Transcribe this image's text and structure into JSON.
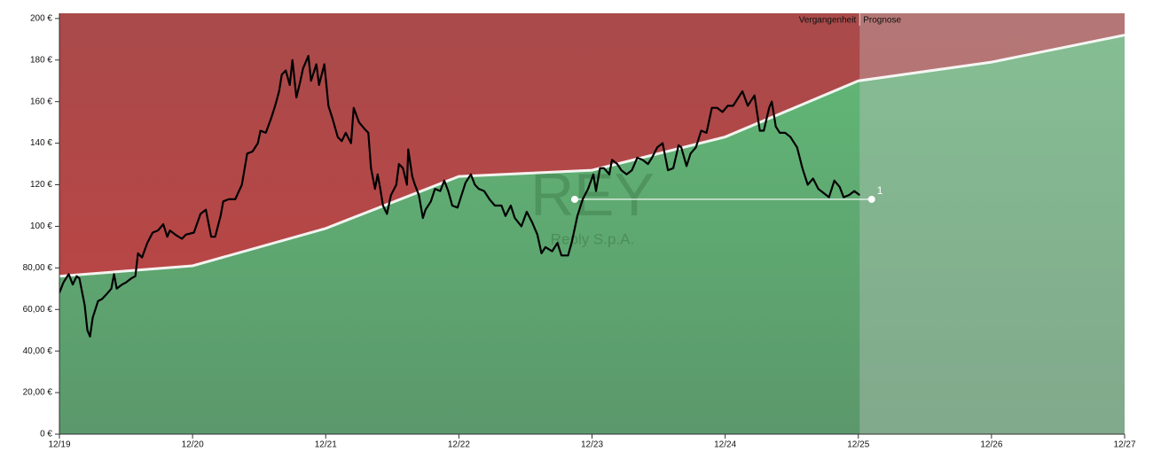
{
  "chart_data": {
    "type": "line",
    "labels": {
      "past": "Vergangenheit",
      "forecast": "Prognose"
    },
    "watermark": {
      "ticker": "REY",
      "company": "Reply S.p.A."
    },
    "xlim": [
      2019.92,
      2027.92
    ],
    "xticks": [
      {
        "value": 2019.92,
        "label": "12/19"
      },
      {
        "value": 2020.92,
        "label": "12/20"
      },
      {
        "value": 2021.92,
        "label": "12/21"
      },
      {
        "value": 2022.92,
        "label": "12/22"
      },
      {
        "value": 2023.92,
        "label": "12/23"
      },
      {
        "value": 2024.92,
        "label": "12/24"
      },
      {
        "value": 2025.92,
        "label": "12/25"
      },
      {
        "value": 2026.92,
        "label": "12/26"
      },
      {
        "value": 2027.92,
        "label": "12/27"
      }
    ],
    "ylim": [
      0,
      202.5
    ],
    "yticks": [
      {
        "value": 0,
        "label": "0 €"
      },
      {
        "value": 20,
        "label": "20,00 €"
      },
      {
        "value": 40,
        "label": "40,00 €"
      },
      {
        "value": 60,
        "label": "60,00 €"
      },
      {
        "value": 80,
        "label": "80,00 €"
      },
      {
        "value": 100,
        "label": "100 €"
      },
      {
        "value": 120,
        "label": "120 €"
      },
      {
        "value": 140,
        "label": "140 €"
      },
      {
        "value": 160,
        "label": "160 €"
      },
      {
        "value": 180,
        "label": "180 €"
      },
      {
        "value": 200,
        "label": "200 €"
      }
    ],
    "fair_value": {
      "color": "#ffffff",
      "x": [
        2019.92,
        2020.92,
        2021.92,
        2022.92,
        2023.92,
        2024.92,
        2025.92,
        2026.92,
        2027.92
      ],
      "values": [
        76,
        81,
        99,
        124,
        127,
        143,
        170,
        179,
        192
      ]
    },
    "price": {
      "color": "#000000",
      "x": [
        2019.92,
        2019.95,
        2019.99,
        2020.02,
        2020.05,
        2020.07,
        2020.11,
        2020.13,
        2020.15,
        2020.17,
        2020.21,
        2020.24,
        2020.27,
        2020.31,
        2020.33,
        2020.35,
        2020.39,
        2020.42,
        2020.46,
        2020.49,
        2020.51,
        2020.54,
        2020.58,
        2020.62,
        2020.66,
        2020.7,
        2020.73,
        2020.75,
        2020.79,
        2020.84,
        2020.87,
        2020.93,
        2020.98,
        2021.02,
        2021.06,
        2021.09,
        2021.13,
        2021.15,
        2021.19,
        2021.24,
        2021.29,
        2021.33,
        2021.37,
        2021.41,
        2021.43,
        2021.47,
        2021.51,
        2021.54,
        2021.57,
        2021.59,
        2021.62,
        2021.65,
        2021.67,
        2021.7,
        2021.73,
        2021.75,
        2021.79,
        2021.81,
        2021.85,
        2021.87,
        2021.91,
        2021.94,
        2021.97,
        2022.01,
        2022.04,
        2022.07,
        2022.11,
        2022.13,
        2022.17,
        2022.21,
        2022.24,
        2022.26,
        2022.29,
        2022.31,
        2022.33,
        2022.35,
        2022.38,
        2022.41,
        2022.45,
        2022.47,
        2022.5,
        2022.53,
        2022.54,
        2022.57,
        2022.59,
        2022.62,
        2022.65,
        2022.67,
        2022.71,
        2022.74,
        2022.78,
        2022.81,
        2022.84,
        2022.87,
        2022.91,
        2022.94,
        2022.97,
        2023.01,
        2023.04,
        2023.07,
        2023.11,
        2023.15,
        2023.19,
        2023.24,
        2023.27,
        2023.31,
        2023.34,
        2023.39,
        2023.43,
        2023.47,
        2023.51,
        2023.54,
        2023.57,
        2023.62,
        2023.66,
        2023.69,
        2023.74,
        2023.77,
        2023.81,
        2023.85,
        2023.89,
        2023.93,
        2023.95,
        2023.98,
        2024.01,
        2024.05,
        2024.07,
        2024.11,
        2024.14,
        2024.18,
        2024.22,
        2024.26,
        2024.3,
        2024.34,
        2024.37,
        2024.41,
        2024.45,
        2024.49,
        2024.53,
        2024.57,
        2024.59,
        2024.63,
        2024.66,
        2024.7,
        2024.74,
        2024.78,
        2024.82,
        2024.86,
        2024.9,
        2024.94,
        2024.98,
        2025.02,
        2025.05,
        2025.09,
        2025.11,
        2025.14,
        2025.18,
        2025.21,
        2025.25,
        2025.27,
        2025.3,
        2025.33,
        2025.37,
        2025.41,
        2025.46,
        2025.5,
        2025.54,
        2025.58,
        2025.62,
        2025.66,
        2025.7,
        2025.74,
        2025.78,
        2025.81,
        2025.85,
        2025.89,
        2025.93
      ],
      "values": [
        68,
        73,
        77,
        72,
        76,
        75,
        62,
        50,
        47,
        56,
        64,
        65,
        67,
        70,
        77,
        70,
        72,
        73,
        75,
        76,
        87,
        85,
        92,
        97,
        98,
        101,
        95,
        98,
        96,
        94,
        96,
        97,
        106,
        108,
        95,
        95,
        105,
        112,
        113,
        113,
        120,
        135,
        136,
        140,
        146,
        145,
        152,
        158,
        165,
        173,
        175,
        168,
        180,
        162,
        170,
        176,
        182,
        170,
        178,
        168,
        178,
        158,
        152,
        143,
        141,
        145,
        140,
        157,
        150,
        147,
        145,
        128,
        118,
        125,
        118,
        110,
        106,
        115,
        120,
        130,
        128,
        120,
        137,
        124,
        120,
        115,
        104,
        108,
        112,
        118,
        117,
        122,
        117,
        110,
        109,
        115,
        121,
        125,
        120,
        118,
        117,
        113,
        110,
        110,
        105,
        110,
        104,
        100,
        107,
        102,
        96,
        87,
        90,
        88,
        92,
        86,
        86,
        93,
        105,
        113,
        118,
        125,
        117,
        128,
        128,
        125,
        132,
        130,
        127,
        125,
        127,
        133,
        132,
        130,
        133,
        138,
        140,
        127,
        128,
        139,
        138,
        129,
        135,
        138,
        146,
        145,
        157,
        157,
        155,
        158,
        158,
        162,
        165,
        158,
        160,
        163,
        146,
        146,
        157,
        160,
        148,
        145,
        145,
        143,
        138,
        128,
        120,
        123,
        118,
        116,
        114,
        122,
        119,
        114,
        115,
        117,
        115
      ]
    },
    "reference": {
      "label": "1",
      "color": "#ffffff",
      "x": [
        2023.79,
        2026.02
      ],
      "values": [
        113,
        113
      ]
    }
  }
}
